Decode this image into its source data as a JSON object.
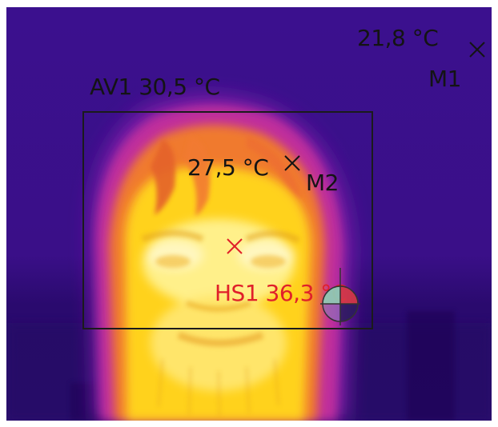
{
  "image": {
    "subject": "thermal image of a person's face",
    "palette": "iron",
    "background_color": "#3a0f8c"
  },
  "measurements": {
    "spot_m1": {
      "value": "21,8 °C",
      "name": "M1",
      "color": "#141414"
    },
    "spot_m2": {
      "value": "27,5 °C",
      "name": "M2",
      "color": "#141414"
    },
    "area_av1": {
      "label": "AV1 30,5 °C",
      "color": "#141414"
    },
    "hotspot_hs1": {
      "label": "HS1 36,3 °C",
      "color": "#e0202a"
    }
  },
  "icons": {
    "spot_marker": "x-cross-icon",
    "hotspot_marker": "red-x-cross-icon",
    "reticle": "crosshair-reticle-icon"
  }
}
